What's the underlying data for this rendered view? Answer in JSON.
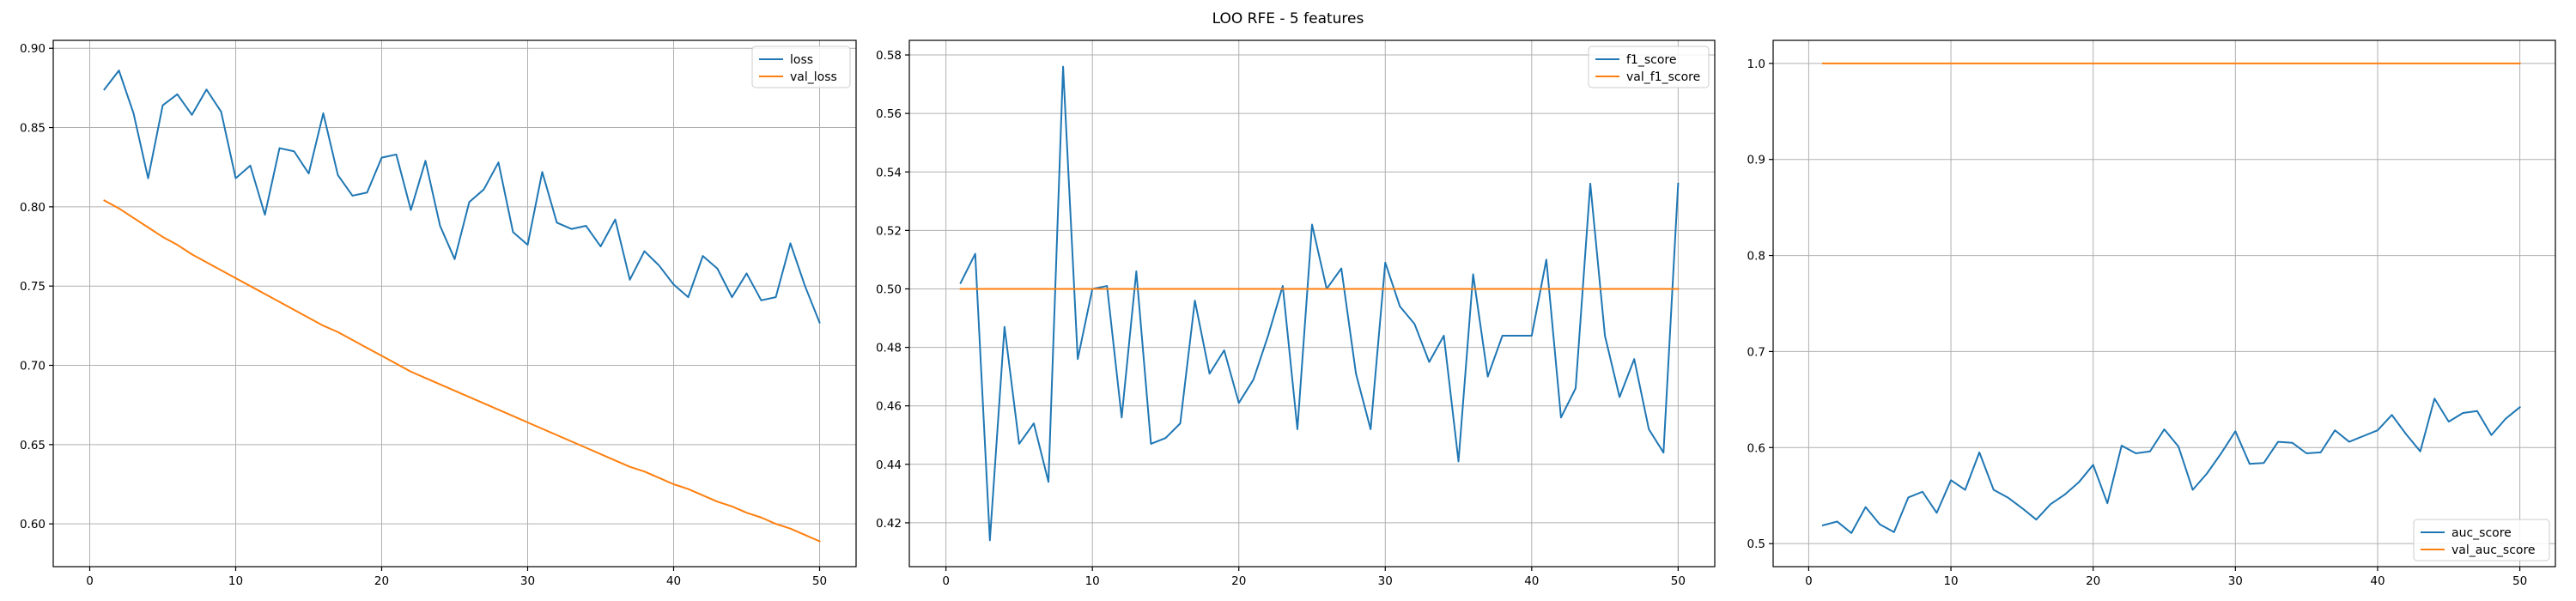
{
  "figure_title": "LOO RFE - 5 features",
  "colors": {
    "series_1": "#1f77b4",
    "series_2": "#ff7f0e"
  },
  "chart_data": [
    {
      "type": "line",
      "title": "",
      "xlabel": "",
      "ylabel": "",
      "xlim": [
        -2.5,
        52.5
      ],
      "ylim": [
        0.573,
        0.905
      ],
      "xticks": [
        0,
        10,
        20,
        30,
        40,
        50
      ],
      "yticks": [
        0.6,
        0.65,
        0.7,
        0.75,
        0.8,
        0.85,
        0.9
      ],
      "grid": true,
      "legend_position": "upper-right",
      "x": [
        1,
        2,
        3,
        4,
        5,
        6,
        7,
        8,
        9,
        10,
        11,
        12,
        13,
        14,
        15,
        16,
        17,
        18,
        19,
        20,
        21,
        22,
        23,
        24,
        25,
        26,
        27,
        28,
        29,
        30,
        31,
        32,
        33,
        34,
        35,
        36,
        37,
        38,
        39,
        40,
        41,
        42,
        43,
        44,
        45,
        46,
        47,
        48,
        49,
        50
      ],
      "series": [
        {
          "name": "loss",
          "color": "#1f77b4",
          "values": [
            0.874,
            0.886,
            0.859,
            0.818,
            0.864,
            0.871,
            0.858,
            0.874,
            0.86,
            0.818,
            0.826,
            0.795,
            0.837,
            0.835,
            0.821,
            0.859,
            0.82,
            0.807,
            0.809,
            0.831,
            0.833,
            0.798,
            0.829,
            0.788,
            0.767,
            0.803,
            0.811,
            0.828,
            0.784,
            0.776,
            0.822,
            0.79,
            0.786,
            0.788,
            0.775,
            0.792,
            0.754,
            0.772,
            0.763,
            0.751,
            0.743,
            0.769,
            0.761,
            0.743,
            0.758,
            0.741,
            0.743,
            0.777,
            0.75,
            0.727
          ]
        },
        {
          "name": "val_loss",
          "color": "#ff7f0e",
          "values": [
            0.804,
            0.799,
            0.793,
            0.787,
            0.781,
            0.776,
            0.77,
            0.765,
            0.76,
            0.755,
            0.75,
            0.745,
            0.74,
            0.735,
            0.73,
            0.725,
            0.721,
            0.716,
            0.711,
            0.706,
            0.701,
            0.696,
            0.692,
            0.688,
            0.684,
            0.68,
            0.676,
            0.672,
            0.668,
            0.664,
            0.66,
            0.656,
            0.652,
            0.648,
            0.644,
            0.64,
            0.636,
            0.633,
            0.629,
            0.625,
            0.622,
            0.618,
            0.614,
            0.611,
            0.607,
            0.604,
            0.6,
            0.597,
            0.593,
            0.589
          ]
        }
      ]
    },
    {
      "type": "line",
      "title": "",
      "xlabel": "",
      "ylabel": "",
      "xlim": [
        -2.5,
        52.5
      ],
      "ylim": [
        0.405,
        0.585
      ],
      "xticks": [
        0,
        10,
        20,
        30,
        40,
        50
      ],
      "yticks": [
        0.42,
        0.44,
        0.46,
        0.48,
        0.5,
        0.52,
        0.54,
        0.56,
        0.58
      ],
      "grid": true,
      "legend_position": "upper-right",
      "x": [
        1,
        2,
        3,
        4,
        5,
        6,
        7,
        8,
        9,
        10,
        11,
        12,
        13,
        14,
        15,
        16,
        17,
        18,
        19,
        20,
        21,
        22,
        23,
        24,
        25,
        26,
        27,
        28,
        29,
        30,
        31,
        32,
        33,
        34,
        35,
        36,
        37,
        38,
        39,
        40,
        41,
        42,
        43,
        44,
        45,
        46,
        47,
        48,
        49,
        50
      ],
      "series": [
        {
          "name": "f1_score",
          "color": "#1f77b4",
          "values": [
            0.502,
            0.512,
            0.414,
            0.487,
            0.447,
            0.454,
            0.434,
            0.576,
            0.476,
            0.5,
            0.501,
            0.456,
            0.506,
            0.447,
            0.449,
            0.454,
            0.496,
            0.471,
            0.479,
            0.461,
            0.469,
            0.484,
            0.501,
            0.452,
            0.522,
            0.5,
            0.507,
            0.471,
            0.452,
            0.509,
            0.494,
            0.488,
            0.475,
            0.484,
            0.441,
            0.505,
            0.47,
            0.484,
            0.484,
            0.484,
            0.51,
            0.456,
            0.466,
            0.536,
            0.484,
            0.463,
            0.476,
            0.452,
            0.444,
            0.536
          ]
        },
        {
          "name": "val_f1_score",
          "color": "#ff7f0e",
          "values": [
            0.5,
            0.5,
            0.5,
            0.5,
            0.5,
            0.5,
            0.5,
            0.5,
            0.5,
            0.5,
            0.5,
            0.5,
            0.5,
            0.5,
            0.5,
            0.5,
            0.5,
            0.5,
            0.5,
            0.5,
            0.5,
            0.5,
            0.5,
            0.5,
            0.5,
            0.5,
            0.5,
            0.5,
            0.5,
            0.5,
            0.5,
            0.5,
            0.5,
            0.5,
            0.5,
            0.5,
            0.5,
            0.5,
            0.5,
            0.5,
            0.5,
            0.5,
            0.5,
            0.5,
            0.5,
            0.5,
            0.5,
            0.5,
            0.5,
            0.5
          ]
        }
      ]
    },
    {
      "type": "line",
      "title": "",
      "xlabel": "",
      "ylabel": "",
      "xlim": [
        -2.5,
        52.5
      ],
      "ylim": [
        0.476,
        1.024
      ],
      "xticks": [
        0,
        10,
        20,
        30,
        40,
        50
      ],
      "yticks": [
        0.5,
        0.6,
        0.7,
        0.8,
        0.9,
        1.0
      ],
      "grid": true,
      "legend_position": "lower-right",
      "x": [
        1,
        2,
        3,
        4,
        5,
        6,
        7,
        8,
        9,
        10,
        11,
        12,
        13,
        14,
        15,
        16,
        17,
        18,
        19,
        20,
        21,
        22,
        23,
        24,
        25,
        26,
        27,
        28,
        29,
        30,
        31,
        32,
        33,
        34,
        35,
        36,
        37,
        38,
        39,
        40,
        41,
        42,
        43,
        44,
        45,
        46,
        47,
        48,
        49,
        50
      ],
      "series": [
        {
          "name": "auc_score",
          "color": "#1f77b4",
          "values": [
            0.519,
            0.523,
            0.511,
            0.538,
            0.52,
            0.512,
            0.548,
            0.554,
            0.532,
            0.566,
            0.556,
            0.595,
            0.556,
            0.548,
            0.537,
            0.525,
            0.541,
            0.551,
            0.564,
            0.582,
            0.542,
            0.602,
            0.594,
            0.596,
            0.619,
            0.601,
            0.556,
            0.573,
            0.594,
            0.617,
            0.583,
            0.584,
            0.606,
            0.605,
            0.594,
            0.595,
            0.618,
            0.606,
            0.612,
            0.618,
            0.634,
            0.614,
            0.596,
            0.651,
            0.627,
            0.636,
            0.638,
            0.613,
            0.63,
            0.642
          ]
        },
        {
          "name": "val_auc_score",
          "color": "#ff7f0e",
          "values": [
            1.0,
            1.0,
            1.0,
            1.0,
            1.0,
            1.0,
            1.0,
            1.0,
            1.0,
            1.0,
            1.0,
            1.0,
            1.0,
            1.0,
            1.0,
            1.0,
            1.0,
            1.0,
            1.0,
            1.0,
            1.0,
            1.0,
            1.0,
            1.0,
            1.0,
            1.0,
            1.0,
            1.0,
            1.0,
            1.0,
            1.0,
            1.0,
            1.0,
            1.0,
            1.0,
            1.0,
            1.0,
            1.0,
            1.0,
            1.0,
            1.0,
            1.0,
            1.0,
            1.0,
            1.0,
            1.0,
            1.0,
            1.0,
            1.0,
            1.0
          ]
        }
      ]
    }
  ]
}
